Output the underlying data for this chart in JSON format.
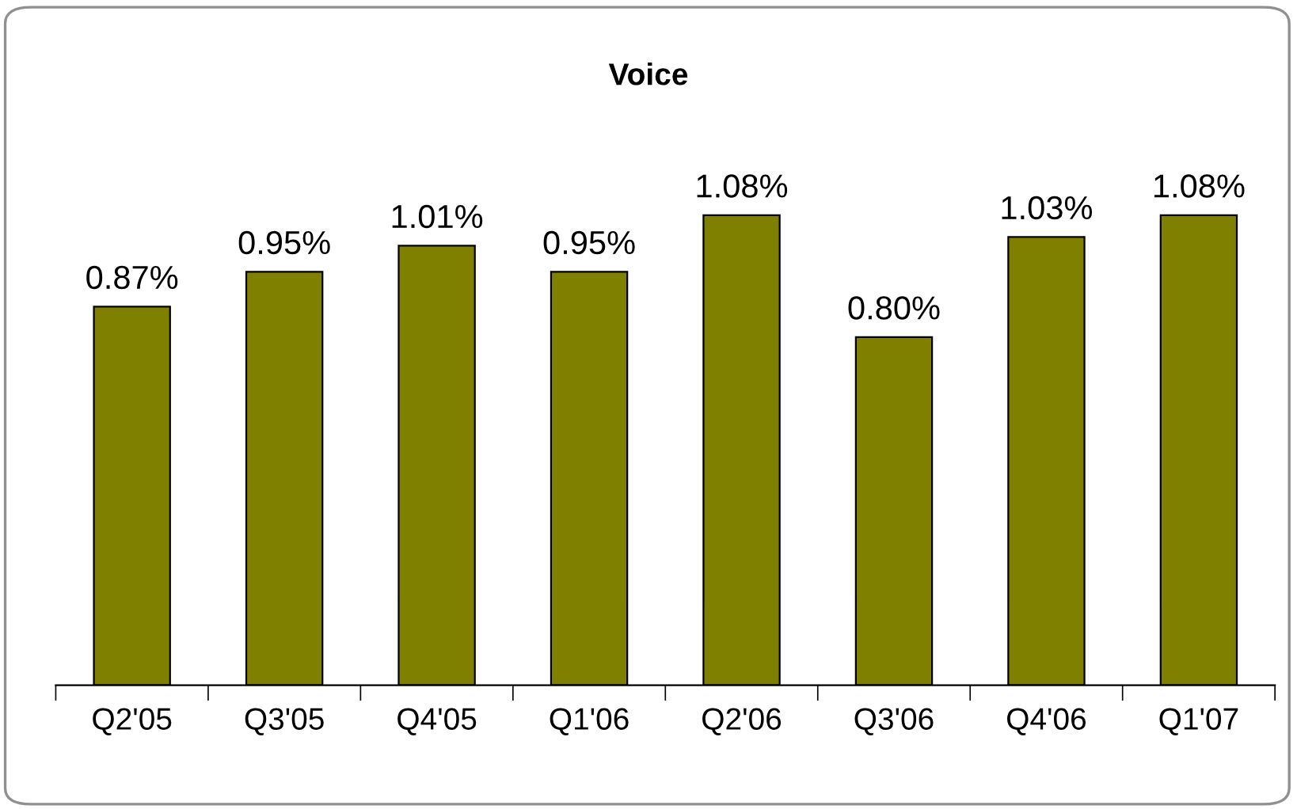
{
  "chart_data": {
    "type": "bar",
    "title": "Voice",
    "categories": [
      "Q2'05",
      "Q3'05",
      "Q4'05",
      "Q1'06",
      "Q2'06",
      "Q3'06",
      "Q4'06",
      "Q1'07"
    ],
    "values": [
      0.87,
      0.95,
      1.01,
      0.95,
      1.08,
      0.8,
      1.03,
      1.08
    ],
    "value_labels": [
      "0.87%",
      "0.95%",
      "1.01%",
      "0.95%",
      "1.08%",
      "0.80%",
      "1.03%",
      "1.08%"
    ],
    "color": "#808000"
  }
}
